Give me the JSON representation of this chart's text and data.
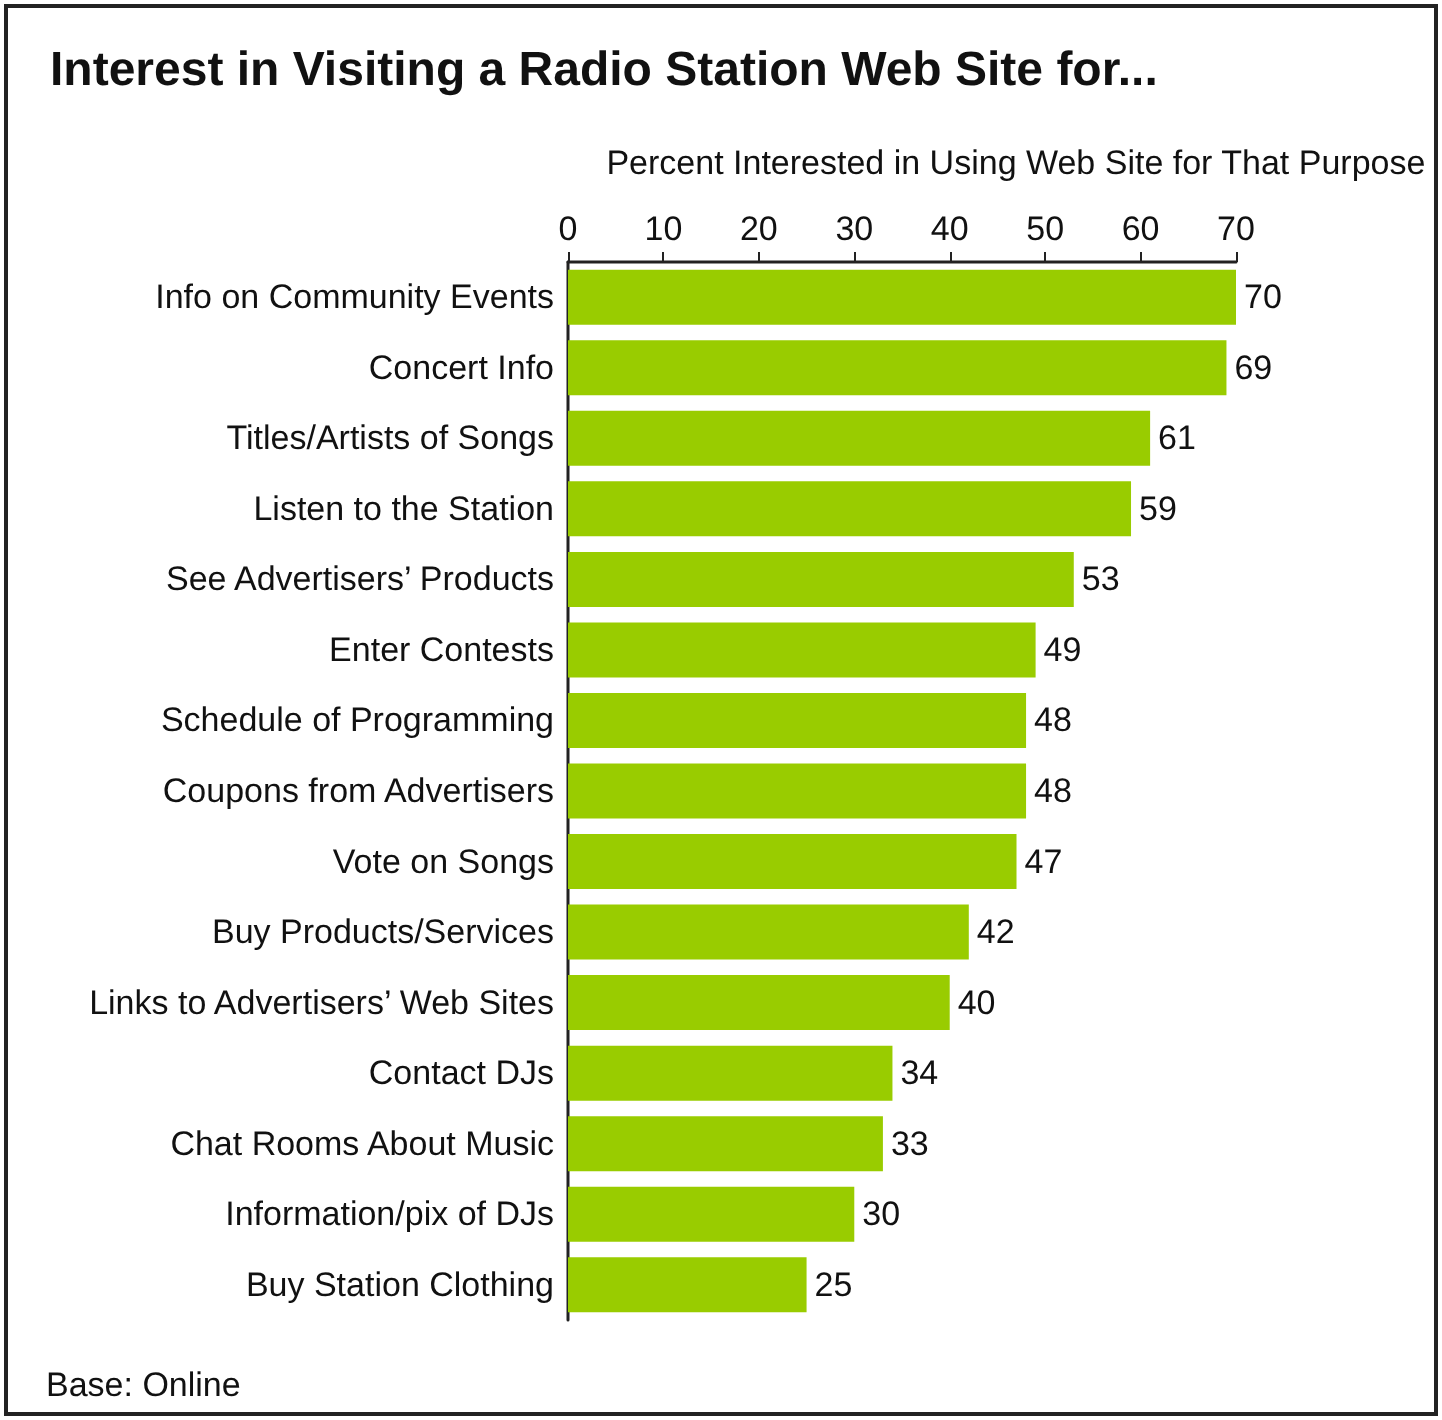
{
  "chart_data": {
    "type": "bar",
    "orientation": "horizontal",
    "title": "Interest in Visiting a Radio Station Web Site for...",
    "xlabel": "Percent Interested in Using Web Site for That Purpose",
    "categories": [
      "Info on Community Events",
      "Concert Info",
      "Titles/Artists of Songs",
      "Listen to the Station",
      "See Advertisers’ Products",
      "Enter Contests",
      "Schedule of Programming",
      "Coupons from Advertisers",
      "Vote on Songs",
      "Buy Products/Services",
      "Links to Advertisers’ Web Sites",
      "Contact DJs",
      "Chat Rooms About Music",
      "Information/pix of DJs",
      "Buy Station Clothing"
    ],
    "values": [
      70,
      69,
      61,
      59,
      53,
      49,
      48,
      48,
      47,
      42,
      40,
      34,
      33,
      30,
      25
    ],
    "color": "#99cc00",
    "xlim": [
      0,
      70
    ],
    "xticks": [
      0,
      10,
      20,
      30,
      40,
      50,
      60,
      70
    ],
    "data_labels": true,
    "grid": false,
    "annotations": [
      "Base: Online"
    ]
  }
}
